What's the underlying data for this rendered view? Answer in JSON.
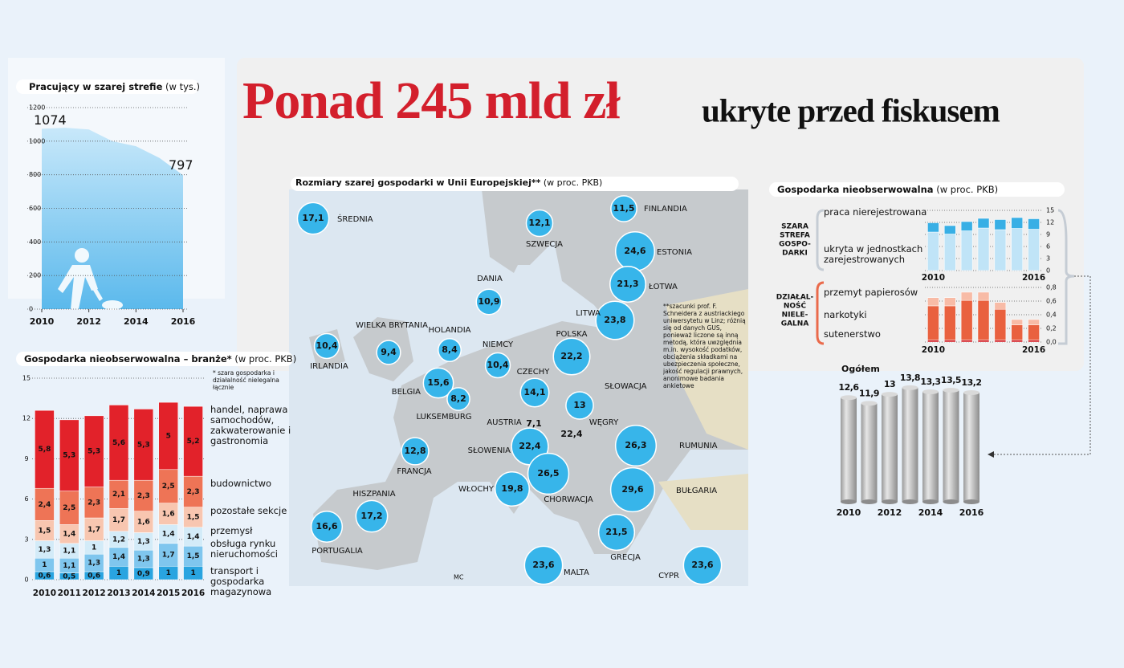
{
  "header": {
    "title": "Ponad 245  mld zł",
    "subtitle": "ukryte przed fiskusem"
  },
  "credit": "MC",
  "chart_data": [
    {
      "type": "area",
      "title": "Pracujący w szarej strefie",
      "subtitle": "(w tys.)",
      "x": [
        2010,
        2011,
        2012,
        2013,
        2014,
        2015,
        2016
      ],
      "values": [
        1074,
        1080,
        1070,
        1000,
        970,
        900,
        797
      ],
      "color": "#a9daf5",
      "xlim": [
        2010,
        2016
      ],
      "xticks": [
        2010,
        2012,
        2014,
        2016
      ],
      "ylim": [
        0,
        1200
      ],
      "yticks": [
        0,
        200,
        400,
        600,
        800,
        1000,
        1200
      ],
      "grid": true
    },
    {
      "type": "stacked-bar",
      "title": "Gospodarka nieobserwowalna – branże*",
      "subtitle": "(w proc. PKB)",
      "note": "* szara gospodarka i działalność nielegalna łącznie",
      "categories": [
        "2010",
        "2011",
        "2012",
        "2013",
        "2014",
        "2015",
        "2016"
      ],
      "series": [
        {
          "name": "transport i gospodarka magazynowa",
          "color": "#29a4e0",
          "values": [
            0.6,
            0.5,
            0.6,
            1,
            0.9,
            1,
            1
          ],
          "value_labels": [
            "0,6",
            "0,5",
            "0,6",
            "1",
            "0,9",
            "1",
            "1"
          ]
        },
        {
          "name": "obsługa rynku nieruchomości",
          "color": "#7fc6ee",
          "values": [
            1,
            1.1,
            1.3,
            1.4,
            1.3,
            1.7,
            1.5
          ],
          "value_labels": [
            "1",
            "1,1",
            "1,3",
            "1,4",
            "1,3",
            "1,7",
            "1,5"
          ]
        },
        {
          "name": "przemysł",
          "color": "#d3ebf8",
          "values": [
            1.3,
            1.1,
            1,
            1.2,
            1.3,
            1.4,
            1.4
          ],
          "value_labels": [
            "1,3",
            "1,1",
            "1",
            "1,2",
            "1,3",
            "1,4",
            "1,4"
          ]
        },
        {
          "name": "pozostałe sekcje",
          "color": "#f8c6b0",
          "values": [
            1.5,
            1.4,
            1.7,
            1.7,
            1.6,
            1.6,
            1.5
          ],
          "value_labels": [
            "1,5",
            "1,4",
            "1,7",
            "1,7",
            "1,6",
            "1,6",
            "1,5"
          ]
        },
        {
          "name": "budownictwo",
          "color": "#ee7456",
          "values": [
            2.4,
            2.5,
            2.3,
            2.1,
            2.3,
            2.5,
            2.3
          ],
          "value_labels": [
            "2,4",
            "2,5",
            "2,3",
            "2,1",
            "2,3",
            "2,5",
            "2,3"
          ]
        },
        {
          "name": "handel, naprawa samochodów, zakwaterowanie i gastronomia",
          "color": "#e2222a",
          "values": [
            5.8,
            5.3,
            5.3,
            5.6,
            5.3,
            5,
            5.2
          ],
          "value_labels": [
            "5,8",
            "5,3",
            "5,3",
            "5,6",
            "5,3",
            "5",
            "5,2"
          ]
        }
      ],
      "ylim": [
        0,
        15
      ],
      "yticks": [
        0,
        3,
        6,
        9,
        12,
        15
      ],
      "grid": true
    },
    {
      "type": "bubble",
      "title": "Rozmiary szarej gospodarki w Unii Europejskiej**",
      "subtitle": "(w proc. PKB)",
      "note": "**szacunki prof. F. Schneidera z austriackiego uniwersytetu w Linz; różnią się od danych GUS, ponieważ liczone są inną metodą, która uwzględnia m.in. wysokość podatków, obciążenia składkami na ubezpieczenia społeczne, jakość regulacji prawnych, anonimowe badania ankietowe",
      "categories": [
        "ŚREDNIA",
        "SZWECJA",
        "FINLANDIA",
        "ESTONIA",
        "ŁOTWA",
        "LITWA",
        "DANIA",
        "IRLANDIA",
        "WIELKA BRYTANIA",
        "HOLANDIA",
        "NIEMCY",
        "POLSKA",
        "BELGIA",
        "LUKSEMBURG",
        "CZECHY",
        "SŁOWACJA",
        "AUSTRIA",
        "WĘGRY",
        "FRANCJA",
        "SŁOWENIA",
        "CHORWACJA",
        "RUMUNIA",
        "BUŁGARIA",
        "WŁOCHY",
        "HISZPANIA",
        "PORTUGALIA",
        "GRECJA",
        "MALTA",
        "CYPR"
      ],
      "values": [
        17.1,
        12.1,
        11.5,
        24.6,
        21.3,
        23.8,
        10.9,
        10.4,
        9.4,
        8.4,
        10.4,
        22.2,
        15.6,
        8.2,
        14.1,
        13,
        7.1,
        22.4,
        12.8,
        22.4,
        26.5,
        26.3,
        29.6,
        19.8,
        17.2,
        16.6,
        21.5,
        23.6,
        23.6
      ],
      "value_labels": [
        "17,1",
        "12,1",
        "11,5",
        "24,6",
        "21,3",
        "23,8",
        "10,9",
        "10,4",
        "9,4",
        "8,4",
        "10,4",
        "22,2",
        "15,6",
        "8,2",
        "14,1",
        "13",
        "7,1",
        "22,4",
        "12,8",
        "22,4",
        "26,5",
        "26,3",
        "29,6",
        "19,8",
        "17,2",
        "16,6",
        "21,5",
        "23,6",
        "23,6"
      ],
      "color": "#37b5ea"
    },
    {
      "type": "stacked-bar",
      "title": "Gospodarka nieobserwowalna",
      "subtitle": "(w proc. PKB)",
      "group_label": [
        "SZARA",
        "STREFA",
        "GOSPO-",
        "DARKI"
      ],
      "categories": [
        "2010",
        null,
        null,
        null,
        null,
        null,
        "2016"
      ],
      "series": [
        {
          "name": "ukryta w jednostkach zarejestrowanych",
          "color": "#c0e4f7",
          "values": [
            9.6,
            9.1,
            9.9,
            10.6,
            10.2,
            10.5,
            10.3
          ]
        },
        {
          "name": "praca nierejestrowana",
          "color": "#38afe5",
          "values": [
            2.3,
            2.1,
            2.3,
            2.4,
            2.5,
            2.7,
            2.6
          ]
        }
      ],
      "ylim": [
        0,
        15
      ],
      "yticks": [
        0,
        3,
        6,
        9,
        12,
        15
      ],
      "grid": true
    },
    {
      "type": "stacked-bar",
      "group_label": [
        "DZIAŁAL-",
        "NOŚĆ",
        "NIELE-",
        "GALNA"
      ],
      "categories": [
        "2010",
        null,
        null,
        null,
        null,
        null,
        "2016"
      ],
      "series": [
        {
          "name": "sutenerstwo",
          "color": "#d21f26",
          "values": [
            0.03,
            0.03,
            0.03,
            0.03,
            0.03,
            0.03,
            0.03
          ]
        },
        {
          "name": "narkotyki",
          "color": "#e9613f",
          "values": [
            0.5,
            0.5,
            0.58,
            0.58,
            0.45,
            0.22,
            0.22
          ]
        },
        {
          "name": "przemyt papierosów",
          "color": "#f8bba6",
          "values": [
            0.12,
            0.12,
            0.12,
            0.12,
            0.1,
            0.08,
            0.08
          ]
        }
      ],
      "ylim": [
        0,
        0.8
      ],
      "yticks": [
        {
          "value": 0,
          "label": "0,0"
        },
        {
          "value": 0.2,
          "label": "0,2"
        },
        {
          "value": 0.4,
          "label": "0,4"
        },
        {
          "value": 0.6,
          "label": "0,6"
        },
        {
          "value": 0.8,
          "label": "0,8"
        }
      ],
      "grid": true
    },
    {
      "type": "bar",
      "title": "Ogółem",
      "categories": [
        "2010",
        null,
        "2012",
        null,
        "2014",
        null,
        "2016"
      ],
      "values": [
        12.6,
        11.9,
        13,
        13.8,
        13.3,
        13.5,
        13.2
      ],
      "value_labels": [
        "12,6",
        "11,9",
        "13",
        "13,8",
        "13,3",
        "13,5",
        "13,2"
      ],
      "color": "#c4c4c4"
    }
  ]
}
